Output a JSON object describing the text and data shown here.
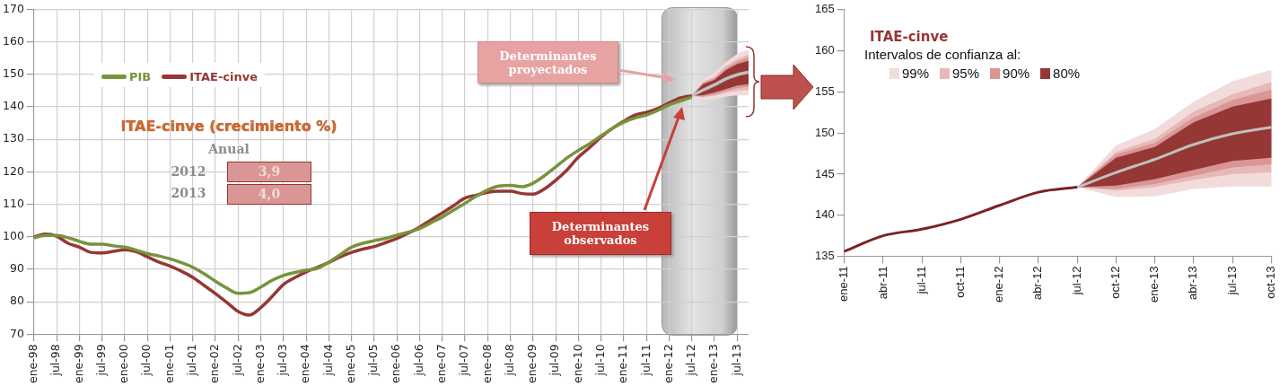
{
  "chart_data": [
    {
      "type": "line",
      "categories": [
        "ene-98",
        null,
        "jul-98",
        null,
        "ene-99",
        null,
        "jul-99",
        null,
        "ene-00",
        null,
        "jul-00",
        null,
        "ene-01",
        null,
        "jul-01",
        null,
        "ene-02",
        null,
        "jul-02",
        null,
        "ene-03",
        null,
        "jul-03",
        null,
        "ene-04",
        null,
        "jul-04",
        null,
        "ene-05",
        null,
        "jul-05",
        null,
        "ene-06",
        null,
        "jul-06",
        null,
        "ene-07",
        null,
        "jul-07",
        null,
        "ene-08",
        null,
        "jul-08",
        null,
        "ene-09",
        null,
        "jul-09",
        null,
        "ene-10",
        null,
        "jul-10",
        null,
        "ene-11",
        null,
        "jul-11",
        null,
        "ene-12",
        null,
        "jul-12",
        null,
        "ene-13",
        null,
        "jul-13",
        null
      ],
      "series": [
        {
          "name": "PIB",
          "color": "#77933c",
          "values": [
            99.7,
            100.4,
            100.4,
            99.7,
            98.6,
            97.7,
            97.7,
            97.2,
            96.8,
            95.9,
            94.8,
            94.1,
            93.2,
            92,
            90.6,
            88.6,
            86.3,
            84.2,
            82.6,
            82.8,
            84.5,
            86.6,
            88.1,
            89,
            89.7,
            90.3,
            92.2,
            94.5,
            96.8,
            98,
            98.8,
            99.5,
            100.5,
            101.4,
            102.5,
            104.3,
            106.1,
            108.2,
            110.3,
            112.5,
            114.4,
            115.6,
            115.8,
            115.4,
            116.5,
            118.8,
            121.5,
            124.3,
            126.6,
            128.7,
            131.1,
            133.4,
            135.3,
            136.6,
            137.5,
            138.9,
            140.6,
            141.8,
            143,
            null,
            null,
            null,
            null,
            null
          ]
        },
        {
          "name": "ITAE-cinve",
          "color": "#953735",
          "values": [
            100,
            100.8,
            100.2,
            98,
            96.8,
            95.2,
            95,
            95.5,
            96,
            95.4,
            93.8,
            92.2,
            91,
            89.4,
            87.5,
            85,
            82.5,
            79.8,
            77,
            75.9,
            78.2,
            81.6,
            85.3,
            87.4,
            89.2,
            90.6,
            92.1,
            93.8,
            95.2,
            96.2,
            97,
            98.2,
            99.5,
            101.1,
            103,
            105.2,
            107.3,
            109.6,
            111.9,
            112.8,
            113.7,
            114,
            114,
            113.3,
            113.1,
            114.7,
            117.4,
            120.6,
            124.5,
            127.5,
            130.7,
            133.4,
            135.6,
            137.5,
            138.3,
            139.5,
            141.2,
            142.8,
            143.4,
            null,
            null,
            null,
            null,
            null
          ]
        },
        {
          "color": "#f2dcdb",
          "values": [
            null,
            null,
            null,
            null,
            null,
            null,
            null,
            null,
            null,
            null,
            null,
            null,
            null,
            null,
            null,
            null,
            null,
            null,
            null,
            null,
            null,
            null,
            null,
            null,
            null,
            null,
            null,
            null,
            null,
            null,
            null,
            null,
            null,
            null,
            null,
            null,
            null,
            null,
            null,
            null,
            null,
            null,
            null,
            null,
            null,
            null,
            null,
            null,
            null,
            null,
            null,
            null,
            null,
            null,
            null,
            null,
            null,
            null,
            null,
            null,
            null,
            null,
            null,
            null
          ],
          "lower": [
            null,
            null,
            null,
            null,
            null,
            null,
            null,
            null,
            null,
            null,
            null,
            null,
            null,
            null,
            null,
            null,
            null,
            null,
            null,
            null,
            null,
            null,
            null,
            null,
            null,
            null,
            null,
            null,
            null,
            null,
            null,
            null,
            null,
            null,
            null,
            null,
            null,
            null,
            null,
            null,
            null,
            null,
            null,
            null,
            null,
            null,
            null,
            null,
            null,
            null,
            null,
            null,
            null,
            null,
            null,
            null,
            null,
            null,
            143.4,
            142.2,
            142.3,
            143.2,
            143.5,
            143.5
          ],
          "upper": [
            null,
            null,
            null,
            null,
            null,
            null,
            null,
            null,
            null,
            null,
            null,
            null,
            null,
            null,
            null,
            null,
            null,
            null,
            null,
            null,
            null,
            null,
            null,
            null,
            null,
            null,
            null,
            null,
            null,
            null,
            null,
            null,
            null,
            null,
            null,
            null,
            null,
            null,
            null,
            null,
            null,
            null,
            null,
            null,
            null,
            null,
            null,
            null,
            null,
            null,
            null,
            null,
            null,
            null,
            null,
            null,
            null,
            null,
            143.4,
            148.5,
            150.5,
            153.8,
            156.3,
            157.7
          ]
        },
        {
          "color": "#e6b9b8",
          "values": [
            null,
            null,
            null,
            null,
            null,
            null,
            null,
            null,
            null,
            null,
            null,
            null,
            null,
            null,
            null,
            null,
            null,
            null,
            null,
            null,
            null,
            null,
            null,
            null,
            null,
            null,
            null,
            null,
            null,
            null,
            null,
            null,
            null,
            null,
            null,
            null,
            null,
            null,
            null,
            null,
            null,
            null,
            null,
            null,
            null,
            null,
            null,
            null,
            null,
            null,
            null,
            null,
            null,
            null,
            null,
            null,
            null,
            null,
            null,
            null,
            null,
            null,
            null,
            null
          ],
          "lower": [
            null,
            null,
            null,
            null,
            null,
            null,
            null,
            null,
            null,
            null,
            null,
            null,
            null,
            null,
            null,
            null,
            null,
            null,
            null,
            null,
            null,
            null,
            null,
            null,
            null,
            null,
            null,
            null,
            null,
            null,
            null,
            null,
            null,
            null,
            null,
            null,
            null,
            null,
            null,
            null,
            null,
            null,
            null,
            null,
            null,
            null,
            null,
            null,
            null,
            null,
            null,
            null,
            null,
            null,
            null,
            null,
            null,
            null,
            143.4,
            143,
            143.4,
            144.3,
            145,
            145.2
          ],
          "upper": [
            null,
            null,
            null,
            null,
            null,
            null,
            null,
            null,
            null,
            null,
            null,
            null,
            null,
            null,
            null,
            null,
            null,
            null,
            null,
            null,
            null,
            null,
            null,
            null,
            null,
            null,
            null,
            null,
            null,
            null,
            null,
            null,
            null,
            null,
            null,
            null,
            null,
            null,
            null,
            null,
            null,
            null,
            null,
            null,
            null,
            null,
            null,
            null,
            null,
            null,
            null,
            null,
            null,
            null,
            null,
            null,
            null,
            null,
            143.4,
            147.7,
            149.3,
            152.6,
            154.7,
            156.2
          ]
        },
        {
          "color": "#d99694",
          "values": [
            null,
            null,
            null,
            null,
            null,
            null,
            null,
            null,
            null,
            null,
            null,
            null,
            null,
            null,
            null,
            null,
            null,
            null,
            null,
            null,
            null,
            null,
            null,
            null,
            null,
            null,
            null,
            null,
            null,
            null,
            null,
            null,
            null,
            null,
            null,
            null,
            null,
            null,
            null,
            null,
            null,
            null,
            null,
            null,
            null,
            null,
            null,
            null,
            null,
            null,
            null,
            null,
            null,
            null,
            null,
            null,
            null,
            null,
            null,
            null,
            null,
            null,
            null,
            null
          ],
          "lower": [
            null,
            null,
            null,
            null,
            null,
            null,
            null,
            null,
            null,
            null,
            null,
            null,
            null,
            null,
            null,
            null,
            null,
            null,
            null,
            null,
            null,
            null,
            null,
            null,
            null,
            null,
            null,
            null,
            null,
            null,
            null,
            null,
            null,
            null,
            null,
            null,
            null,
            null,
            null,
            null,
            null,
            null,
            null,
            null,
            null,
            null,
            null,
            null,
            null,
            null,
            null,
            null,
            null,
            null,
            null,
            null,
            null,
            null,
            143.4,
            143.2,
            143.8,
            144.8,
            145.8,
            146.2
          ],
          "upper": [
            null,
            null,
            null,
            null,
            null,
            null,
            null,
            null,
            null,
            null,
            null,
            null,
            null,
            null,
            null,
            null,
            null,
            null,
            null,
            null,
            null,
            null,
            null,
            null,
            null,
            null,
            null,
            null,
            null,
            null,
            null,
            null,
            null,
            null,
            null,
            null,
            null,
            null,
            null,
            null,
            null,
            null,
            null,
            null,
            null,
            null,
            null,
            null,
            null,
            null,
            null,
            null,
            null,
            null,
            null,
            null,
            null,
            null,
            143.4,
            147.4,
            148.8,
            151.9,
            154,
            155.3
          ]
        },
        {
          "color": "#953735",
          "values": [
            null,
            null,
            null,
            null,
            null,
            null,
            null,
            null,
            null,
            null,
            null,
            null,
            null,
            null,
            null,
            null,
            null,
            null,
            null,
            null,
            null,
            null,
            null,
            null,
            null,
            null,
            null,
            null,
            null,
            null,
            null,
            null,
            null,
            null,
            null,
            null,
            null,
            null,
            null,
            null,
            null,
            null,
            null,
            null,
            null,
            null,
            null,
            null,
            null,
            null,
            null,
            null,
            null,
            null,
            null,
            null,
            null,
            null,
            null,
            null,
            null,
            null,
            null,
            null
          ],
          "lower": [
            null,
            null,
            null,
            null,
            null,
            null,
            null,
            null,
            null,
            null,
            null,
            null,
            null,
            null,
            null,
            null,
            null,
            null,
            null,
            null,
            null,
            null,
            null,
            null,
            null,
            null,
            null,
            null,
            null,
            null,
            null,
            null,
            null,
            null,
            null,
            null,
            null,
            null,
            null,
            null,
            null,
            null,
            null,
            null,
            null,
            null,
            null,
            null,
            null,
            null,
            null,
            null,
            null,
            null,
            null,
            null,
            null,
            null,
            143.4,
            143.6,
            144.4,
            145.5,
            146.6,
            147
          ],
          "upper": [
            null,
            null,
            null,
            null,
            null,
            null,
            null,
            null,
            null,
            null,
            null,
            null,
            null,
            null,
            null,
            null,
            null,
            null,
            null,
            null,
            null,
            null,
            null,
            null,
            null,
            null,
            null,
            null,
            null,
            null,
            null,
            null,
            null,
            null,
            null,
            null,
            null,
            null,
            null,
            null,
            null,
            null,
            null,
            null,
            null,
            null,
            null,
            null,
            null,
            null,
            null,
            null,
            null,
            null,
            null,
            null,
            null,
            null,
            143.4,
            147,
            148.3,
            151.3,
            153.2,
            154.2
          ]
        },
        {
          "color": "#bfbfbf",
          "values": [
            null,
            null,
            null,
            null,
            null,
            null,
            null,
            null,
            null,
            null,
            null,
            null,
            null,
            null,
            null,
            null,
            null,
            null,
            null,
            null,
            null,
            null,
            null,
            null,
            null,
            null,
            null,
            null,
            null,
            null,
            null,
            null,
            null,
            null,
            null,
            null,
            null,
            null,
            null,
            null,
            null,
            null,
            null,
            null,
            null,
            null,
            null,
            null,
            null,
            null,
            null,
            null,
            null,
            null,
            null,
            null,
            null,
            null,
            143.4,
            145.2,
            146.8,
            148.6,
            149.9,
            150.7
          ]
        }
      ],
      "ylim": [
        70,
        170
      ],
      "yticks": [
        70,
        80,
        90,
        100,
        110,
        120,
        130,
        140,
        150,
        160,
        170
      ],
      "grid": true,
      "legend": "top left",
      "annotations": [
        "ITAE-cinve (crecimiento %)",
        "Anual",
        "2012",
        "3,9",
        "2013",
        "4,0",
        "Determinantes proyectados",
        "Determinantes observados"
      ]
    },
    {
      "type": "line",
      "title": "ITAE-cinve",
      "legend_title": "Intervalos de confianza al:",
      "categories": [
        "ene-11",
        "abr-11",
        "jul-11",
        "oct-11",
        "ene-12",
        "abr-12",
        "jul-12",
        "oct-12",
        "ene-13",
        "abr-13",
        "jul-13",
        "oct-13"
      ],
      "series": [
        {
          "name": "99%",
          "color": "#f2dcdb",
          "values": [
            null,
            null,
            null,
            null,
            null,
            null,
            null,
            null,
            null,
            null,
            null,
            null
          ],
          "lower": [
            null,
            null,
            null,
            null,
            null,
            null,
            143.4,
            142.2,
            142.3,
            143.2,
            143.5,
            143.5
          ],
          "upper": [
            null,
            null,
            null,
            null,
            null,
            null,
            143.4,
            148.5,
            150.5,
            153.8,
            156.3,
            157.7
          ]
        },
        {
          "name": "95%",
          "color": "#e6b9b8",
          "values": [
            null,
            null,
            null,
            null,
            null,
            null,
            null,
            null,
            null,
            null,
            null,
            null
          ],
          "lower": [
            null,
            null,
            null,
            null,
            null,
            null,
            143.4,
            143,
            143.4,
            144.3,
            145,
            145.2
          ],
          "upper": [
            null,
            null,
            null,
            null,
            null,
            null,
            143.4,
            147.7,
            149.3,
            152.6,
            154.7,
            156.2
          ]
        },
        {
          "name": "90%",
          "color": "#d99694",
          "values": [
            null,
            null,
            null,
            null,
            null,
            null,
            null,
            null,
            null,
            null,
            null,
            null
          ],
          "lower": [
            null,
            null,
            null,
            null,
            null,
            null,
            143.4,
            143.2,
            143.8,
            144.8,
            145.8,
            146.2
          ],
          "upper": [
            null,
            null,
            null,
            null,
            null,
            null,
            143.4,
            147.4,
            148.8,
            151.9,
            154,
            155.3
          ]
        },
        {
          "name": "80%",
          "color": "#953735",
          "values": [
            null,
            null,
            null,
            null,
            null,
            null,
            null,
            null,
            null,
            null,
            null,
            null
          ],
          "lower": [
            null,
            null,
            null,
            null,
            null,
            null,
            143.4,
            143.6,
            144.4,
            145.5,
            146.6,
            147
          ],
          "upper": [
            null,
            null,
            null,
            null,
            null,
            null,
            143.4,
            147,
            148.3,
            151.3,
            153.2,
            154.2
          ]
        },
        {
          "color": "#7b2323",
          "values": [
            135.6,
            137.5,
            138.3,
            139.5,
            141.2,
            142.8,
            143.4,
            null,
            null,
            null,
            null,
            null
          ]
        },
        {
          "color": "#bfbfbf",
          "values": [
            null,
            null,
            null,
            null,
            null,
            null,
            143.4,
            145.2,
            146.8,
            148.6,
            149.9,
            150.7
          ]
        }
      ],
      "ylim": [
        135,
        165
      ],
      "yticks": [
        135,
        140,
        145,
        150,
        155,
        160,
        165
      ],
      "grid": false,
      "legend": "top left"
    }
  ]
}
